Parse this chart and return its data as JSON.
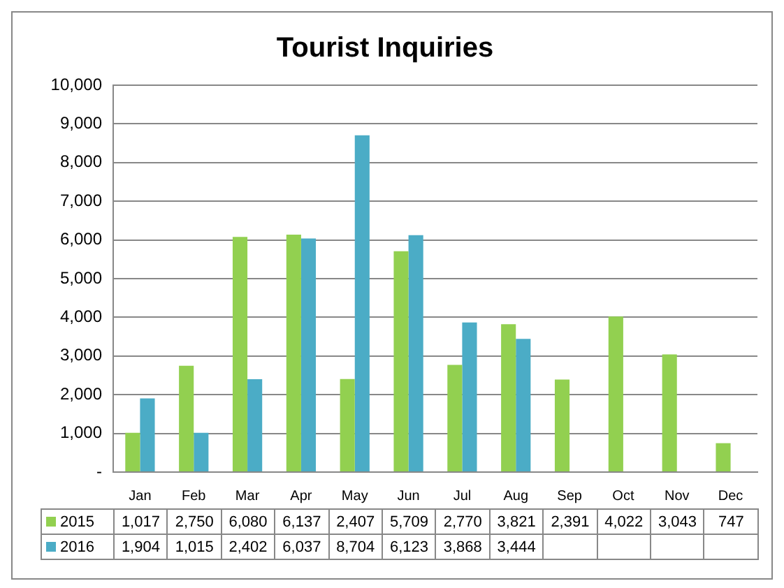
{
  "chart_data": {
    "type": "bar",
    "title": "Tourist Inquiries",
    "categories": [
      "Jan",
      "Feb",
      "Mar",
      "Apr",
      "May",
      "Jun",
      "Jul",
      "Aug",
      "Sep",
      "Oct",
      "Nov",
      "Dec"
    ],
    "series": [
      {
        "name": "2015",
        "color": "#92d050",
        "values": [
          1017,
          2750,
          6080,
          6137,
          2407,
          5709,
          2770,
          3821,
          2391,
          4022,
          3043,
          747
        ],
        "value_labels": [
          "1,017",
          "2,750",
          "6,080",
          "6,137",
          "2,407",
          "5,709",
          "2,770",
          "3,821",
          "2,391",
          "4,022",
          "3,043",
          "747"
        ]
      },
      {
        "name": "2016",
        "color": "#4bacc6",
        "values": [
          1904,
          1015,
          2402,
          6037,
          8704,
          6123,
          3868,
          3444,
          null,
          null,
          null,
          null
        ],
        "value_labels": [
          "1,904",
          "1,015",
          "2,402",
          "6,037",
          "8,704",
          "6,123",
          "3,868",
          "3,444",
          null,
          null,
          null,
          null
        ]
      }
    ],
    "ylim": [
      0,
      10000
    ],
    "yticks": [
      {
        "value": 0,
        "label": "-"
      },
      {
        "value": 1000,
        "label": "1,000"
      },
      {
        "value": 2000,
        "label": "2,000"
      },
      {
        "value": 3000,
        "label": "3,000"
      },
      {
        "value": 4000,
        "label": "4,000"
      },
      {
        "value": 5000,
        "label": "5,000"
      },
      {
        "value": 6000,
        "label": "6,000"
      },
      {
        "value": 7000,
        "label": "7,000"
      },
      {
        "value": 8000,
        "label": "8,000"
      },
      {
        "value": 9000,
        "label": "9,000"
      },
      {
        "value": 10000,
        "label": "10,000"
      }
    ],
    "grid": "y",
    "legend": "bottom"
  }
}
